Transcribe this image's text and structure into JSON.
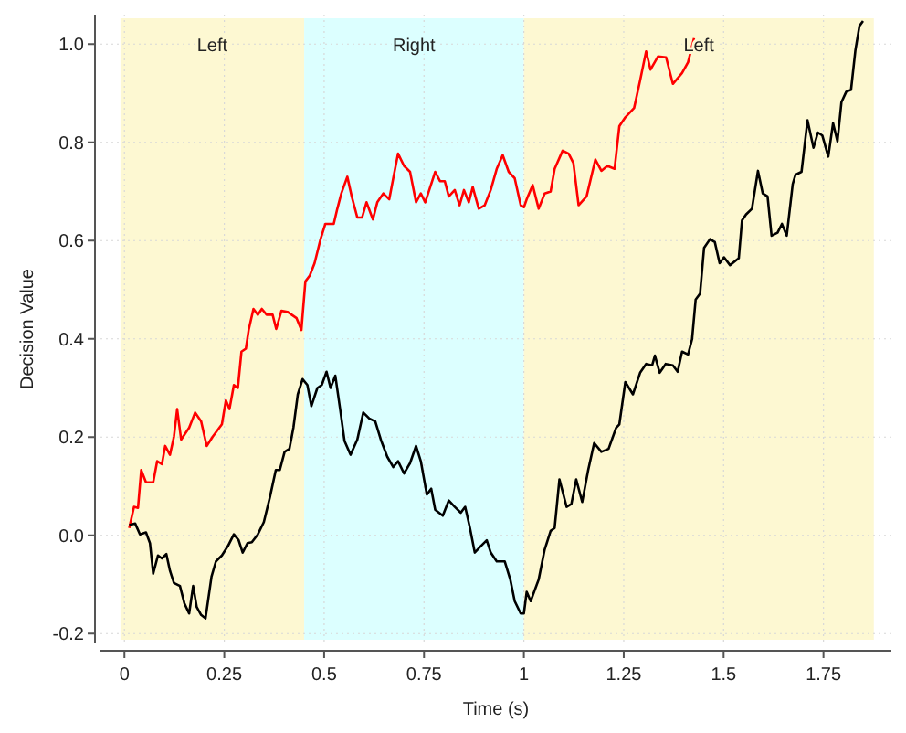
{
  "chart_data": {
    "type": "line",
    "xlabel": "Time (s)",
    "ylabel": "Decision Value",
    "xlim": [
      -0.06,
      1.92
    ],
    "ylim": [
      -0.22,
      1.06
    ],
    "xticks": [
      0,
      0.25,
      0.5,
      0.75,
      1,
      1.25,
      1.5,
      1.75
    ],
    "yticks": [
      -0.2,
      {
        "value": 0,
        "label": "0.0"
      },
      0.2,
      0.4,
      0.6,
      0.8,
      {
        "value": 1,
        "label": "1.0"
      }
    ],
    "grid": true,
    "line_style": "solid",
    "marker": "none",
    "bands": [
      {
        "axis": "x",
        "from": -0.01,
        "to": 0.45,
        "label": "Left",
        "color": "#fdf8d2"
      },
      {
        "axis": "x",
        "from": 0.45,
        "to": 1,
        "label": "Right",
        "color": "#dcffff"
      },
      {
        "axis": "x",
        "from": 1,
        "to": 1.876,
        "label": "Left",
        "color": "#fdf8d2"
      }
    ],
    "series": [
      {
        "color": "#ff0000",
        "x": [
          0.012,
          0.024,
          0.034,
          0.042,
          0.054,
          0.072,
          0.082,
          0.094,
          0.102,
          0.114,
          0.124,
          0.132,
          0.142,
          0.162,
          0.177,
          0.192,
          0.206,
          0.221,
          0.244,
          0.254,
          0.263,
          0.274,
          0.284,
          0.293,
          0.304,
          0.311,
          0.323,
          0.334,
          0.344,
          0.356,
          0.371,
          0.38,
          0.393,
          0.408,
          0.431,
          0.443,
          0.453,
          0.464,
          0.476,
          0.491,
          0.503,
          0.524,
          0.533,
          0.543,
          0.558,
          0.569,
          0.583,
          0.595,
          0.606,
          0.622,
          0.633,
          0.648,
          0.663,
          0.673,
          0.685,
          0.7,
          0.715,
          0.73,
          0.742,
          0.753,
          0.768,
          0.778,
          0.79,
          0.802,
          0.812,
          0.827,
          0.839,
          0.85,
          0.862,
          0.872,
          0.887,
          0.902,
          0.917,
          0.932,
          0.947,
          0.962,
          0.977,
          0.992,
          1.0,
          1.007,
          1.022,
          1.037,
          1.052,
          1.067,
          1.077,
          1.097,
          1.112,
          1.124,
          1.137,
          1.157,
          1.179,
          1.194,
          1.209,
          1.227,
          1.239,
          1.254,
          1.276,
          1.291,
          1.306,
          1.317,
          1.336,
          1.356,
          1.373,
          1.396,
          1.411,
          1.426
        ],
        "values": [
          0.015,
          0.058,
          0.056,
          0.133,
          0.108,
          0.108,
          0.151,
          0.145,
          0.182,
          0.164,
          0.201,
          0.257,
          0.195,
          0.219,
          0.25,
          0.232,
          0.182,
          0.201,
          0.226,
          0.275,
          0.257,
          0.306,
          0.3,
          0.374,
          0.38,
          0.418,
          0.461,
          0.449,
          0.461,
          0.449,
          0.449,
          0.42,
          0.457,
          0.455,
          0.442,
          0.418,
          0.517,
          0.529,
          0.554,
          0.603,
          0.634,
          0.634,
          0.665,
          0.696,
          0.73,
          0.69,
          0.647,
          0.647,
          0.678,
          0.643,
          0.678,
          0.696,
          0.684,
          0.727,
          0.777,
          0.752,
          0.74,
          0.678,
          0.696,
          0.678,
          0.715,
          0.74,
          0.721,
          0.721,
          0.69,
          0.703,
          0.672,
          0.703,
          0.678,
          0.709,
          0.665,
          0.672,
          0.703,
          0.746,
          0.774,
          0.74,
          0.727,
          0.672,
          0.668,
          0.684,
          0.713,
          0.665,
          0.696,
          0.7,
          0.746,
          0.783,
          0.777,
          0.758,
          0.672,
          0.69,
          0.765,
          0.742,
          0.752,
          0.746,
          0.833,
          0.851,
          0.87,
          0.926,
          0.985,
          0.948,
          0.975,
          0.973,
          0.919,
          0.941,
          0.963,
          1.012
        ]
      },
      {
        "color": "#000000",
        "x": [
          0.012,
          0.027,
          0.039,
          0.054,
          0.064,
          0.072,
          0.084,
          0.094,
          0.105,
          0.114,
          0.124,
          0.139,
          0.15,
          0.162,
          0.172,
          0.181,
          0.192,
          0.203,
          0.218,
          0.229,
          0.244,
          0.259,
          0.274,
          0.286,
          0.296,
          0.308,
          0.319,
          0.334,
          0.349,
          0.364,
          0.379,
          0.389,
          0.401,
          0.413,
          0.423,
          0.434,
          0.446,
          0.458,
          0.468,
          0.483,
          0.494,
          0.506,
          0.516,
          0.528,
          0.54,
          0.551,
          0.566,
          0.583,
          0.598,
          0.613,
          0.628,
          0.643,
          0.658,
          0.673,
          0.685,
          0.7,
          0.715,
          0.73,
          0.742,
          0.757,
          0.768,
          0.778,
          0.797,
          0.812,
          0.827,
          0.842,
          0.853,
          0.865,
          0.877,
          0.892,
          0.907,
          0.917,
          0.932,
          0.952,
          0.966,
          0.977,
          0.992,
          1.0,
          1.007,
          1.017,
          1.037,
          1.052,
          1.067,
          1.077,
          1.089,
          1.107,
          1.119,
          1.131,
          1.146,
          1.161,
          1.176,
          1.194,
          1.212,
          1.231,
          1.239,
          1.254,
          1.273,
          1.291,
          1.306,
          1.321,
          1.328,
          1.34,
          1.355,
          1.373,
          1.385,
          1.396,
          1.411,
          1.421,
          1.43,
          1.441,
          1.451,
          1.466,
          1.478,
          1.49,
          1.501,
          1.516,
          1.538,
          1.546,
          1.556,
          1.571,
          1.586,
          1.598,
          1.61,
          1.62,
          1.635,
          1.646,
          1.658,
          1.673,
          1.68,
          1.695,
          1.71,
          1.725,
          1.736,
          1.747,
          1.762,
          1.774,
          1.785,
          1.795,
          1.807,
          1.819,
          1.83,
          1.84,
          1.849
        ],
        "values": [
          0.021,
          0.024,
          0.002,
          0.006,
          -0.016,
          -0.078,
          -0.041,
          -0.047,
          -0.038,
          -0.072,
          -0.097,
          -0.103,
          -0.138,
          -0.159,
          -0.103,
          -0.146,
          -0.162,
          -0.169,
          -0.084,
          -0.053,
          -0.041,
          -0.022,
          0.002,
          -0.01,
          -0.035,
          -0.016,
          -0.014,
          0.002,
          0.027,
          0.077,
          0.133,
          0.133,
          0.17,
          0.176,
          0.219,
          0.287,
          0.318,
          0.306,
          0.263,
          0.3,
          0.306,
          0.333,
          0.3,
          0.325,
          0.257,
          0.192,
          0.164,
          0.195,
          0.25,
          0.238,
          0.232,
          0.192,
          0.16,
          0.139,
          0.151,
          0.126,
          0.147,
          0.182,
          0.151,
          0.083,
          0.095,
          0.052,
          0.04,
          0.071,
          0.058,
          0.046,
          0.058,
          0.015,
          -0.035,
          -0.022,
          -0.01,
          -0.035,
          -0.053,
          -0.053,
          -0.09,
          -0.134,
          -0.159,
          -0.159,
          -0.115,
          -0.134,
          -0.09,
          -0.029,
          0.009,
          0.015,
          0.114,
          0.058,
          0.064,
          0.114,
          0.068,
          0.133,
          0.188,
          0.17,
          0.176,
          0.219,
          0.226,
          0.312,
          0.287,
          0.331,
          0.349,
          0.346,
          0.366,
          0.331,
          0.349,
          0.346,
          0.333,
          0.374,
          0.368,
          0.399,
          0.48,
          0.492,
          0.585,
          0.603,
          0.597,
          0.554,
          0.566,
          0.55,
          0.564,
          0.641,
          0.653,
          0.665,
          0.742,
          0.696,
          0.69,
          0.61,
          0.616,
          0.634,
          0.61,
          0.715,
          0.734,
          0.74,
          0.845,
          0.789,
          0.82,
          0.814,
          0.771,
          0.839,
          0.802,
          0.882,
          0.903,
          0.907,
          0.988,
          1.037,
          1.047
        ]
      }
    ]
  }
}
